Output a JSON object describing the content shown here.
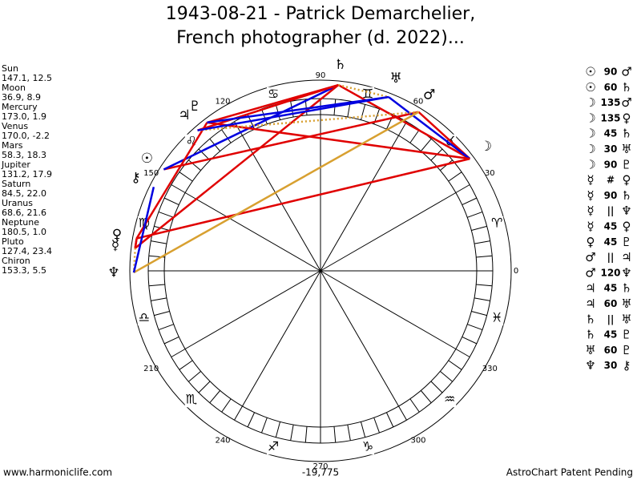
{
  "header": {
    "title_line1": "1943-08-21 - Patrick Demarchelier,",
    "title_line2": "French photographer (d. 2022)..."
  },
  "planets": [
    {
      "name": "Sun",
      "symbol": "☉",
      "position": "147.1, 12.5"
    },
    {
      "name": "Moon",
      "symbol": "☽",
      "position": "36.9, 8.9"
    },
    {
      "name": "Mercury",
      "symbol": "☿",
      "position": "173.0, 1.9"
    },
    {
      "name": "Venus",
      "symbol": "♀",
      "position": "170.0, -2.2"
    },
    {
      "name": "Mars",
      "symbol": "♂",
      "position": "58.3, 18.3"
    },
    {
      "name": "Jupiter",
      "symbol": "♃",
      "position": "131.2, 17.9"
    },
    {
      "name": "Saturn",
      "symbol": "♄",
      "position": "84.5, 22.0"
    },
    {
      "name": "Uranus",
      "symbol": "♅",
      "position": "68.6, 21.6"
    },
    {
      "name": "Neptune",
      "symbol": "♆",
      "position": "180.5, 1.0"
    },
    {
      "name": "Pluto",
      "symbol": "♇",
      "position": "127.4, 23.4"
    },
    {
      "name": "Chiron",
      "symbol": "⚷",
      "position": "153.3, 5.5"
    }
  ],
  "aspects": [
    {
      "from": "☉",
      "angle": 90,
      "to": "♂",
      "color": "#e00000"
    },
    {
      "from": "☉",
      "angle": 60,
      "to": "♄",
      "color": "#0000e0"
    },
    {
      "from": "☽",
      "angle": 135,
      "to": "♂",
      "color": "#e00000"
    },
    {
      "from": "☽",
      "angle": 135,
      "to": "♀",
      "color": "#e00000"
    },
    {
      "from": "☽",
      "angle": 45,
      "to": "♄",
      "color": "#e00000"
    },
    {
      "from": "☽",
      "angle": 30,
      "to": "♅",
      "color": "#0000e0"
    },
    {
      "from": "☽",
      "angle": 90,
      "to": "♇",
      "color": "#e00000"
    },
    {
      "from": "☿",
      "angle": "#",
      "to": "♀",
      "color": "#e00000"
    },
    {
      "from": "☿",
      "angle": 90,
      "to": "♄",
      "color": "#e00000"
    },
    {
      "from": "☿",
      "angle": "||",
      "to": "♆",
      "color": "#d8a030",
      "dotted": true
    },
    {
      "from": "☿",
      "angle": 45,
      "to": "♀",
      "color": "#e00000"
    },
    {
      "from": "♀",
      "angle": 45,
      "to": "♇",
      "color": "#e00000"
    },
    {
      "from": "♂",
      "angle": "||",
      "to": "♃",
      "color": "#d8a030",
      "dotted": true
    },
    {
      "from": "♂",
      "angle": 120,
      "to": "♆",
      "color": "#d8a030"
    },
    {
      "from": "♃",
      "angle": 45,
      "to": "♄",
      "color": "#e00000"
    },
    {
      "from": "♃",
      "angle": 60,
      "to": "♅",
      "color": "#0000e0"
    },
    {
      "from": "♄",
      "angle": "||",
      "to": "♅",
      "color": "#d8a030",
      "dotted": true
    },
    {
      "from": "♄",
      "angle": 45,
      "to": "♇",
      "color": "#e00000"
    },
    {
      "from": "♅",
      "angle": 60,
      "to": "♇",
      "color": "#0000e0"
    },
    {
      "from": "♆",
      "angle": 30,
      "to": "⚷",
      "color": "#0000e0"
    }
  ],
  "degree_labels": [
    0,
    30,
    60,
    90,
    120,
    150,
    210,
    240,
    270,
    300,
    330
  ],
  "signs": [
    "♈",
    "♉",
    "♊",
    "♋",
    "♌",
    "♍",
    "♎",
    "♏",
    "♐",
    "♑",
    "♒",
    "♓"
  ],
  "footer": {
    "left": "www.harmoniclife.com",
    "center": "-19,775",
    "right": "AstroChart Patent Pending"
  }
}
